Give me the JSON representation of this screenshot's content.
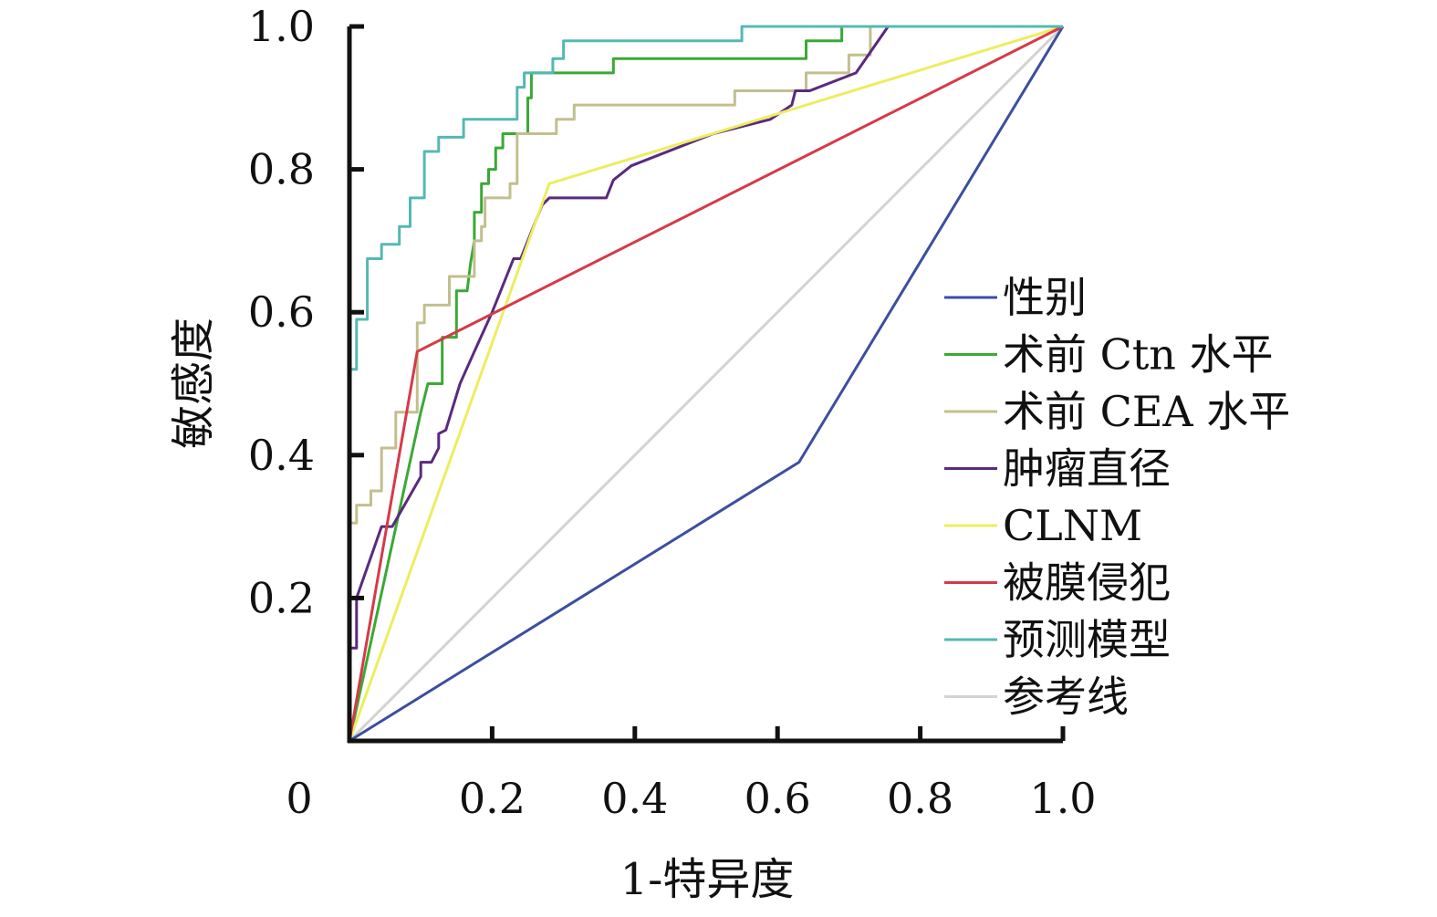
{
  "chart_data": {
    "type": "line",
    "title": "",
    "xlabel": "1-特异度",
    "ylabel": "敏感度",
    "xlim": [
      0,
      1
    ],
    "ylim": [
      0,
      1
    ],
    "origin_label": "0",
    "x_ticks": [
      {
        "value": 0.2,
        "label": "0.2"
      },
      {
        "value": 0.4,
        "label": "0.4"
      },
      {
        "value": 0.6,
        "label": "0.6"
      },
      {
        "value": 0.8,
        "label": "0.8"
      },
      {
        "value": 1.0,
        "label": "1.0"
      }
    ],
    "y_ticks": [
      {
        "value": 0.2,
        "label": "0.2"
      },
      {
        "value": 0.4,
        "label": "0.4"
      },
      {
        "value": 0.6,
        "label": "0.6"
      },
      {
        "value": 0.8,
        "label": "0.8"
      },
      {
        "value": 1.0,
        "label": "1.0"
      }
    ],
    "grid": false,
    "legend_position": "right",
    "series": [
      {
        "name": "性别",
        "color": "#3b4fa0",
        "points": [
          [
            0,
            0
          ],
          [
            0.63,
            0.39
          ],
          [
            1,
            1
          ]
        ]
      },
      {
        "name": "术前 Ctn 水平",
        "color": "#3aa935",
        "points": [
          [
            0,
            0
          ],
          [
            0.1,
            0.46
          ],
          [
            0.105,
            0.48
          ],
          [
            0.11,
            0.5
          ],
          [
            0.13,
            0.5
          ],
          [
            0.13,
            0.565
          ],
          [
            0.15,
            0.565
          ],
          [
            0.15,
            0.63
          ],
          [
            0.165,
            0.63
          ],
          [
            0.17,
            0.67
          ],
          [
            0.175,
            0.7
          ],
          [
            0.175,
            0.74
          ],
          [
            0.185,
            0.74
          ],
          [
            0.185,
            0.78
          ],
          [
            0.195,
            0.78
          ],
          [
            0.195,
            0.8
          ],
          [
            0.205,
            0.8
          ],
          [
            0.205,
            0.83
          ],
          [
            0.215,
            0.83
          ],
          [
            0.215,
            0.85
          ],
          [
            0.25,
            0.85
          ],
          [
            0.25,
            0.9
          ],
          [
            0.255,
            0.9
          ],
          [
            0.255,
            0.935
          ],
          [
            0.37,
            0.935
          ],
          [
            0.37,
            0.955
          ],
          [
            0.64,
            0.955
          ],
          [
            0.64,
            0.98
          ],
          [
            0.69,
            0.98
          ],
          [
            0.69,
            1.0
          ],
          [
            1,
            1
          ]
        ]
      },
      {
        "name": "术前 CEA 水平",
        "color": "#c2bf8f",
        "points": [
          [
            0,
            0.3
          ],
          [
            0,
            0.305
          ],
          [
            0.01,
            0.305
          ],
          [
            0.01,
            0.33
          ],
          [
            0.03,
            0.33
          ],
          [
            0.03,
            0.35
          ],
          [
            0.045,
            0.35
          ],
          [
            0.045,
            0.41
          ],
          [
            0.065,
            0.41
          ],
          [
            0.065,
            0.46
          ],
          [
            0.095,
            0.46
          ],
          [
            0.095,
            0.585
          ],
          [
            0.105,
            0.585
          ],
          [
            0.105,
            0.61
          ],
          [
            0.14,
            0.61
          ],
          [
            0.14,
            0.65
          ],
          [
            0.175,
            0.65
          ],
          [
            0.175,
            0.7
          ],
          [
            0.185,
            0.7
          ],
          [
            0.185,
            0.72
          ],
          [
            0.19,
            0.72
          ],
          [
            0.19,
            0.76
          ],
          [
            0.225,
            0.76
          ],
          [
            0.225,
            0.78
          ],
          [
            0.235,
            0.78
          ],
          [
            0.235,
            0.85
          ],
          [
            0.29,
            0.85
          ],
          [
            0.29,
            0.87
          ],
          [
            0.315,
            0.87
          ],
          [
            0.315,
            0.89
          ],
          [
            0.54,
            0.89
          ],
          [
            0.54,
            0.91
          ],
          [
            0.64,
            0.91
          ],
          [
            0.64,
            0.935
          ],
          [
            0.7,
            0.935
          ],
          [
            0.7,
            0.96
          ],
          [
            0.73,
            0.96
          ],
          [
            0.73,
            1.0
          ],
          [
            1,
            1
          ]
        ]
      },
      {
        "name": "肿瘤直径",
        "color": "#5a2a7e",
        "points": [
          [
            0,
            0.13
          ],
          [
            0.01,
            0.13
          ],
          [
            0.01,
            0.2
          ],
          [
            0.045,
            0.3
          ],
          [
            0.06,
            0.3
          ],
          [
            0.1,
            0.37
          ],
          [
            0.1,
            0.39
          ],
          [
            0.115,
            0.39
          ],
          [
            0.125,
            0.41
          ],
          [
            0.125,
            0.43
          ],
          [
            0.135,
            0.435
          ],
          [
            0.155,
            0.5
          ],
          [
            0.175,
            0.545
          ],
          [
            0.2,
            0.6
          ],
          [
            0.23,
            0.675
          ],
          [
            0.24,
            0.675
          ],
          [
            0.27,
            0.75
          ],
          [
            0.28,
            0.76
          ],
          [
            0.36,
            0.76
          ],
          [
            0.37,
            0.785
          ],
          [
            0.395,
            0.805
          ],
          [
            0.51,
            0.85
          ],
          [
            0.59,
            0.87
          ],
          [
            0.62,
            0.89
          ],
          [
            0.625,
            0.91
          ],
          [
            0.645,
            0.91
          ],
          [
            0.71,
            0.935
          ],
          [
            0.755,
            1.0
          ],
          [
            1,
            1
          ]
        ]
      },
      {
        "name": "CLNM",
        "color": "#eded5f",
        "points": [
          [
            0,
            0
          ],
          [
            0.28,
            0.78
          ],
          [
            1,
            1
          ]
        ]
      },
      {
        "name": "被膜侵犯",
        "color": "#d63a47",
        "points": [
          [
            0,
            0
          ],
          [
            0.095,
            0.545
          ],
          [
            1,
            1
          ]
        ]
      },
      {
        "name": "预测模型",
        "color": "#55b8b2",
        "points": [
          [
            0,
            0
          ],
          [
            0,
            0.52
          ],
          [
            0.01,
            0.52
          ],
          [
            0.01,
            0.59
          ],
          [
            0.025,
            0.59
          ],
          [
            0.025,
            0.675
          ],
          [
            0.045,
            0.675
          ],
          [
            0.045,
            0.695
          ],
          [
            0.07,
            0.695
          ],
          [
            0.07,
            0.72
          ],
          [
            0.085,
            0.72
          ],
          [
            0.085,
            0.76
          ],
          [
            0.105,
            0.76
          ],
          [
            0.105,
            0.825
          ],
          [
            0.125,
            0.825
          ],
          [
            0.125,
            0.845
          ],
          [
            0.16,
            0.845
          ],
          [
            0.16,
            0.87
          ],
          [
            0.235,
            0.87
          ],
          [
            0.235,
            0.915
          ],
          [
            0.245,
            0.915
          ],
          [
            0.245,
            0.935
          ],
          [
            0.285,
            0.935
          ],
          [
            0.285,
            0.955
          ],
          [
            0.3,
            0.955
          ],
          [
            0.3,
            0.98
          ],
          [
            0.55,
            0.98
          ],
          [
            0.55,
            1.0
          ],
          [
            1,
            1
          ]
        ]
      },
      {
        "name": "参考线",
        "color": "#d3d3d3",
        "points": [
          [
            0,
            0
          ],
          [
            1,
            1
          ]
        ]
      }
    ]
  }
}
